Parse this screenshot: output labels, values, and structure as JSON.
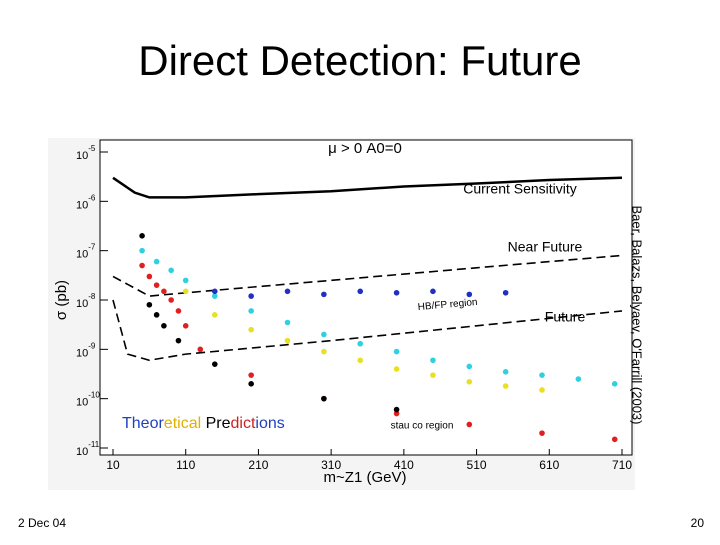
{
  "slide": {
    "title": "Direct Detection: Future",
    "date": "2 Dec 04",
    "page": "20",
    "credit": "Baer, Balazs, Belyaev, O'Farrill (2003)",
    "predictions_label": [
      {
        "text": "Theor",
        "color": "#2040c0"
      },
      {
        "text": "etical",
        "color": "#e0b000"
      },
      {
        "text": " Pre",
        "color": "#000000"
      },
      {
        "text": "dict",
        "color": "#d02020"
      },
      {
        "text": "ions",
        "color": "#2040c0"
      }
    ]
  },
  "chart_data": {
    "type": "line",
    "title": "μ > 0  A0=0",
    "x_label": "m~Z1 (GeV)",
    "y_label": "σ (pb)",
    "log_y": true,
    "hb_fp_label": "HB/FP region",
    "stau_label": "stau co region",
    "xlim": [
      10,
      710
    ],
    "xticks": [
      10,
      110,
      210,
      310,
      410,
      510,
      610,
      710
    ],
    "ylim": [
      1e-11,
      1e-05
    ],
    "yticks": [
      {
        "value": 1e-05,
        "label": "10-5"
      },
      {
        "value": 1e-06,
        "label": "10-6"
      },
      {
        "value": 1e-07,
        "label": "10-7"
      },
      {
        "value": 1e-08,
        "label": "10-8"
      },
      {
        "value": 1e-09,
        "label": "10-9"
      },
      {
        "value": 1e-10,
        "label": "10-10"
      },
      {
        "value": 1e-11,
        "label": "10-11"
      }
    ],
    "series": [
      {
        "name": "Current Sensitivity",
        "style": "solid",
        "color": "#000000",
        "x": [
          10,
          40,
          60,
          110,
          210,
          310,
          410,
          510,
          610,
          710
        ],
        "values": [
          3e-06,
          1.5e-06,
          1.2e-06,
          1.2e-06,
          1.4e-06,
          1.6e-06,
          2e-06,
          2.3e-06,
          2.7e-06,
          3e-06
        ]
      },
      {
        "name": "Near Future",
        "style": "dashed",
        "color": "#000000",
        "x": [
          10,
          60,
          110,
          310,
          510,
          710
        ],
        "values": [
          3e-08,
          1.2e-08,
          1.4e-08,
          2.5e-08,
          4.5e-08,
          8e-08
        ]
      },
      {
        "name": "Future",
        "style": "dashed",
        "color": "#000000",
        "x": [
          10,
          30,
          60,
          110,
          310,
          510,
          710
        ],
        "values": [
          1e-08,
          8e-10,
          6e-10,
          8e-10,
          1.5e-09,
          3e-09,
          6e-09
        ]
      },
      {
        "style": "markers",
        "color": "#30d0e0",
        "x": [
          50,
          70,
          90,
          110,
          150,
          200,
          250,
          300,
          350,
          400,
          450,
          500,
          550,
          600,
          650,
          700
        ],
        "values": [
          1e-07,
          6e-08,
          4e-08,
          2.5e-08,
          1.2e-08,
          6e-09,
          3.5e-09,
          2e-09,
          1.3e-09,
          9e-10,
          6e-10,
          4.5e-10,
          3.5e-10,
          3e-10,
          2.5e-10,
          2e-10
        ]
      },
      {
        "style": "markers",
        "color": "#e8e020",
        "x": [
          110,
          150,
          200,
          250,
          300,
          350,
          400,
          450,
          500,
          550,
          600
        ],
        "values": [
          1.5e-08,
          5e-09,
          2.5e-09,
          1.5e-09,
          9e-10,
          6e-10,
          4e-10,
          3e-10,
          2.2e-10,
          1.8e-10,
          1.5e-10
        ]
      },
      {
        "style": "markers",
        "color": "#e02020",
        "x": [
          50,
          60,
          70,
          80,
          90,
          100,
          110,
          130,
          200,
          300,
          400,
          500,
          600,
          700
        ],
        "values": [
          5e-08,
          3e-08,
          2e-08,
          1.5e-08,
          1e-08,
          6e-09,
          3e-09,
          1e-09,
          3e-10,
          1e-10,
          5e-11,
          3e-11,
          2e-11,
          1.5e-11
        ]
      },
      {
        "style": "markers",
        "color": "#2030c0",
        "x": [
          150,
          200,
          250,
          300,
          350,
          400,
          450,
          500,
          550
        ],
        "values": [
          1.5e-08,
          1.2e-08,
          1.5e-08,
          1.3e-08,
          1.5e-08,
          1.4e-08,
          1.5e-08,
          1.3e-08,
          1.4e-08
        ]
      },
      {
        "style": "markers",
        "color": "#000000",
        "x": [
          50,
          60,
          70,
          80,
          100,
          150,
          200,
          300,
          400
        ],
        "values": [
          2e-07,
          8e-09,
          5e-09,
          3e-09,
          1.5e-09,
          5e-10,
          2e-10,
          1e-10,
          6e-11
        ]
      }
    ]
  }
}
